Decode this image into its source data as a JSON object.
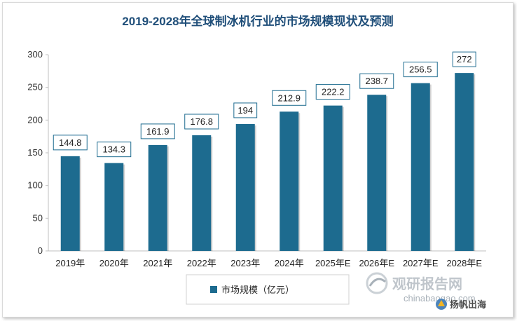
{
  "chart_data": {
    "type": "bar",
    "title": "2019-2028年全球制冰机行业的市场规模现状及预测",
    "categories": [
      "2019年",
      "2020年",
      "2021年",
      "2022年",
      "2023年",
      "2024年",
      "2025年E",
      "2026年E",
      "2027年E",
      "2028年E"
    ],
    "series": [
      {
        "name": "市场规模（亿元）",
        "values": [
          144.8,
          134.3,
          161.9,
          176.8,
          194,
          212.9,
          222.2,
          238.7,
          256.5,
          272
        ],
        "color": "#1d6b8f"
      }
    ],
    "ylim": [
      0,
      300
    ],
    "yticks": [
      0,
      50,
      100,
      150,
      200,
      250,
      300
    ],
    "grid": false,
    "legend": "bottom",
    "data_labels": [
      "144.8",
      "134.3",
      "161.9",
      "176.8",
      "194",
      "212.9",
      "222.2",
      "238.7",
      "256.5",
      "272"
    ]
  },
  "watermark": {
    "brand": "观研报告网",
    "url": "chinabaogao.com",
    "partner": "扬帆出海"
  }
}
